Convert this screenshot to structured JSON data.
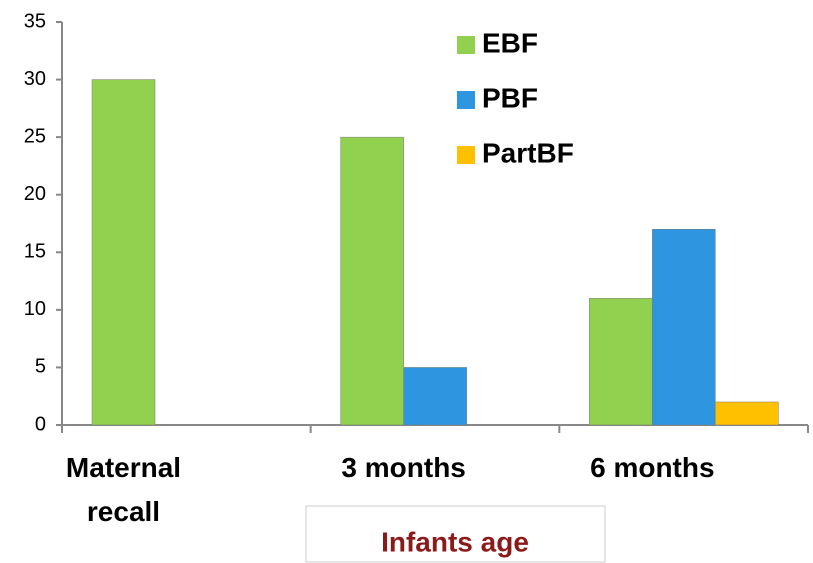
{
  "chart_data": {
    "type": "bar",
    "categories": [
      "Maternal recall",
      "3 months",
      "6 months"
    ],
    "series": [
      {
        "name": "EBF",
        "color": "#92d050",
        "values": [
          30,
          25,
          11
        ]
      },
      {
        "name": "PBF",
        "color": "#2e96e0",
        "values": [
          0,
          5,
          17
        ]
      },
      {
        "name": "PartBF",
        "color": "#ffc000",
        "values": [
          0,
          0,
          2
        ]
      }
    ],
    "x_label": "Infants age",
    "ylim": [
      0,
      35
    ],
    "yticks": [
      0,
      5,
      10,
      15,
      20,
      25,
      30,
      35
    ],
    "grid": false,
    "legend": "top-center"
  }
}
